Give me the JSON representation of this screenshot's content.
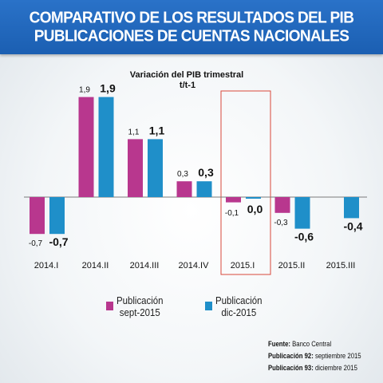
{
  "header": {
    "title_line1": "COMPARATIVO DE LOS RESULTADOS DEL PIB",
    "title_line2": "PUBLICACIONES DE CUENTAS NACIONALES"
  },
  "colors": {
    "header_bg": "#1f64b8",
    "series_sept": "#b8378e",
    "series_dic": "#1f8fc9",
    "highlight_box": "#d9483b"
  },
  "chart_data": {
    "type": "bar",
    "title": "Variación del PIB trimestral",
    "subtitle": "t/t-1",
    "categories": [
      "2014.I",
      "2014.II",
      "2014.III",
      "2014.IV",
      "2015.I",
      "2015.II",
      "2015.III"
    ],
    "series": [
      {
        "name": "Publicación sept-2015",
        "values": [
          -0.7,
          1.9,
          1.1,
          0.3,
          -0.1,
          -0.3,
          null
        ],
        "labels": [
          "-0,7",
          "1,9",
          "1,1",
          "0,3",
          "-0,1",
          "-0,3",
          ""
        ]
      },
      {
        "name": "Publicación dic-2015",
        "values": [
          -0.7,
          1.9,
          1.1,
          0.3,
          0.0,
          -0.6,
          -0.4
        ],
        "labels": [
          "-0,7",
          "1,9",
          "1,1",
          "0,3",
          "0,0",
          "-0,6",
          "-0,4"
        ]
      }
    ],
    "highlighted_category": "2015.I",
    "ylim": [
      -0.8,
      2.0
    ],
    "grid": false
  },
  "legend": {
    "sept_line1": "Publicación",
    "sept_line2": "sept-2015",
    "dic_line1": "Publicación",
    "dic_line2": "dic-2015"
  },
  "source": {
    "fuente_label": "Fuente:",
    "fuente_value": "Banco Central",
    "pub92_label": "Publicación 92:",
    "pub92_value": "septiembre 2015",
    "pub93_label": "Publicación 93:",
    "pub93_value": "diciembre 2015"
  }
}
